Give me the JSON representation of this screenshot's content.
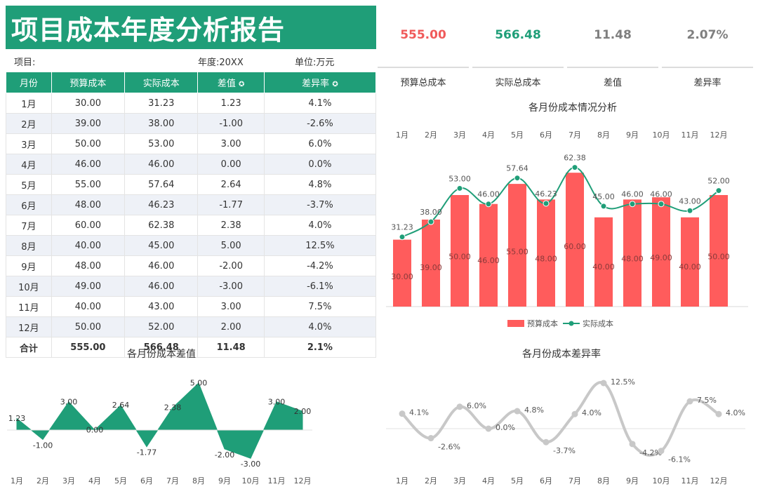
{
  "header": {
    "title": "项目成本年度分析报告",
    "project_label": "项目:",
    "year_label": "年度:20XX",
    "unit_label": "单位:万元"
  },
  "table": {
    "columns": [
      "月份",
      "预算成本",
      "实际成本",
      "差值",
      "差异率"
    ],
    "rows": [
      [
        "1月",
        "30.00",
        "31.23",
        "1.23",
        "4.1%"
      ],
      [
        "2月",
        "39.00",
        "38.00",
        "-1.00",
        "-2.6%"
      ],
      [
        "3月",
        "50.00",
        "53.00",
        "3.00",
        "6.0%"
      ],
      [
        "4月",
        "46.00",
        "46.00",
        "0.00",
        "0.0%"
      ],
      [
        "5月",
        "55.00",
        "57.64",
        "2.64",
        "4.8%"
      ],
      [
        "6月",
        "48.00",
        "46.23",
        "-1.77",
        "-3.7%"
      ],
      [
        "7月",
        "60.00",
        "62.38",
        "2.38",
        "4.0%"
      ],
      [
        "8月",
        "40.00",
        "45.00",
        "5.00",
        "12.5%"
      ],
      [
        "9月",
        "48.00",
        "46.00",
        "-2.00",
        "-4.2%"
      ],
      [
        "10月",
        "49.00",
        "46.00",
        "-3.00",
        "-6.1%"
      ],
      [
        "11月",
        "40.00",
        "43.00",
        "3.00",
        "7.5%"
      ],
      [
        "12月",
        "50.00",
        "52.00",
        "2.00",
        "4.0%"
      ]
    ],
    "total": [
      "合计",
      "555.00",
      "566.48",
      "11.48",
      "2.1%"
    ]
  },
  "kpis": [
    {
      "value": "555.00",
      "label": "预算总成本",
      "color": "#f05a5a"
    },
    {
      "value": "566.48",
      "label": "实际总成本",
      "color": "#1f9e78"
    },
    {
      "value": "11.48",
      "label": "差值",
      "color": "#7f7f7f"
    },
    {
      "value": "2.07%",
      "label": "差异率",
      "color": "#7f7f7f"
    }
  ],
  "chart_data": [
    {
      "type": "bar",
      "title": "各月份成本情况分析",
      "categories": [
        "1月",
        "2月",
        "3月",
        "4月",
        "5月",
        "6月",
        "7月",
        "8月",
        "9月",
        "10月",
        "11月",
        "12月"
      ],
      "series": [
        {
          "name": "预算成本",
          "type": "bar",
          "values": [
            30.0,
            39.0,
            50.0,
            46.0,
            55.0,
            48.0,
            60.0,
            40.0,
            48.0,
            49.0,
            40.0,
            50.0
          ],
          "color": "#ff5c5c"
        },
        {
          "name": "实际成本",
          "type": "line",
          "values": [
            31.23,
            38.0,
            53.0,
            46.0,
            57.64,
            46.23,
            62.38,
            45.0,
            46.0,
            46.0,
            43.0,
            52.0
          ],
          "color": "#1f9e78"
        }
      ],
      "legend": "bottom-center"
    },
    {
      "type": "area",
      "title": "各月份成本差值",
      "categories": [
        "1月",
        "2月",
        "3月",
        "4月",
        "5月",
        "6月",
        "7月",
        "8月",
        "9月",
        "10月",
        "11月",
        "12月"
      ],
      "values": [
        1.23,
        -1.0,
        3.0,
        0.0,
        2.64,
        -1.77,
        2.38,
        5.0,
        -2.0,
        -3.0,
        3.0,
        2.0
      ],
      "color": "#1f9e78"
    },
    {
      "type": "line",
      "title": "各月份成本差异率",
      "categories": [
        "1月",
        "2月",
        "3月",
        "4月",
        "5月",
        "6月",
        "7月",
        "8月",
        "9月",
        "10月",
        "11月",
        "12月"
      ],
      "values": [
        4.1,
        -2.6,
        6.0,
        0.0,
        4.8,
        -3.7,
        4.0,
        12.5,
        -4.2,
        -6.1,
        7.5,
        4.0
      ],
      "labels": [
        "4.1%",
        "-2.6%",
        "6.0%",
        "0.0%",
        "4.8%",
        "-3.7%",
        "4.0%",
        "12.5%",
        "-4.2%",
        "-6.1%",
        "7.5%",
        "4.0%"
      ],
      "color": "#c8c8c8"
    }
  ]
}
